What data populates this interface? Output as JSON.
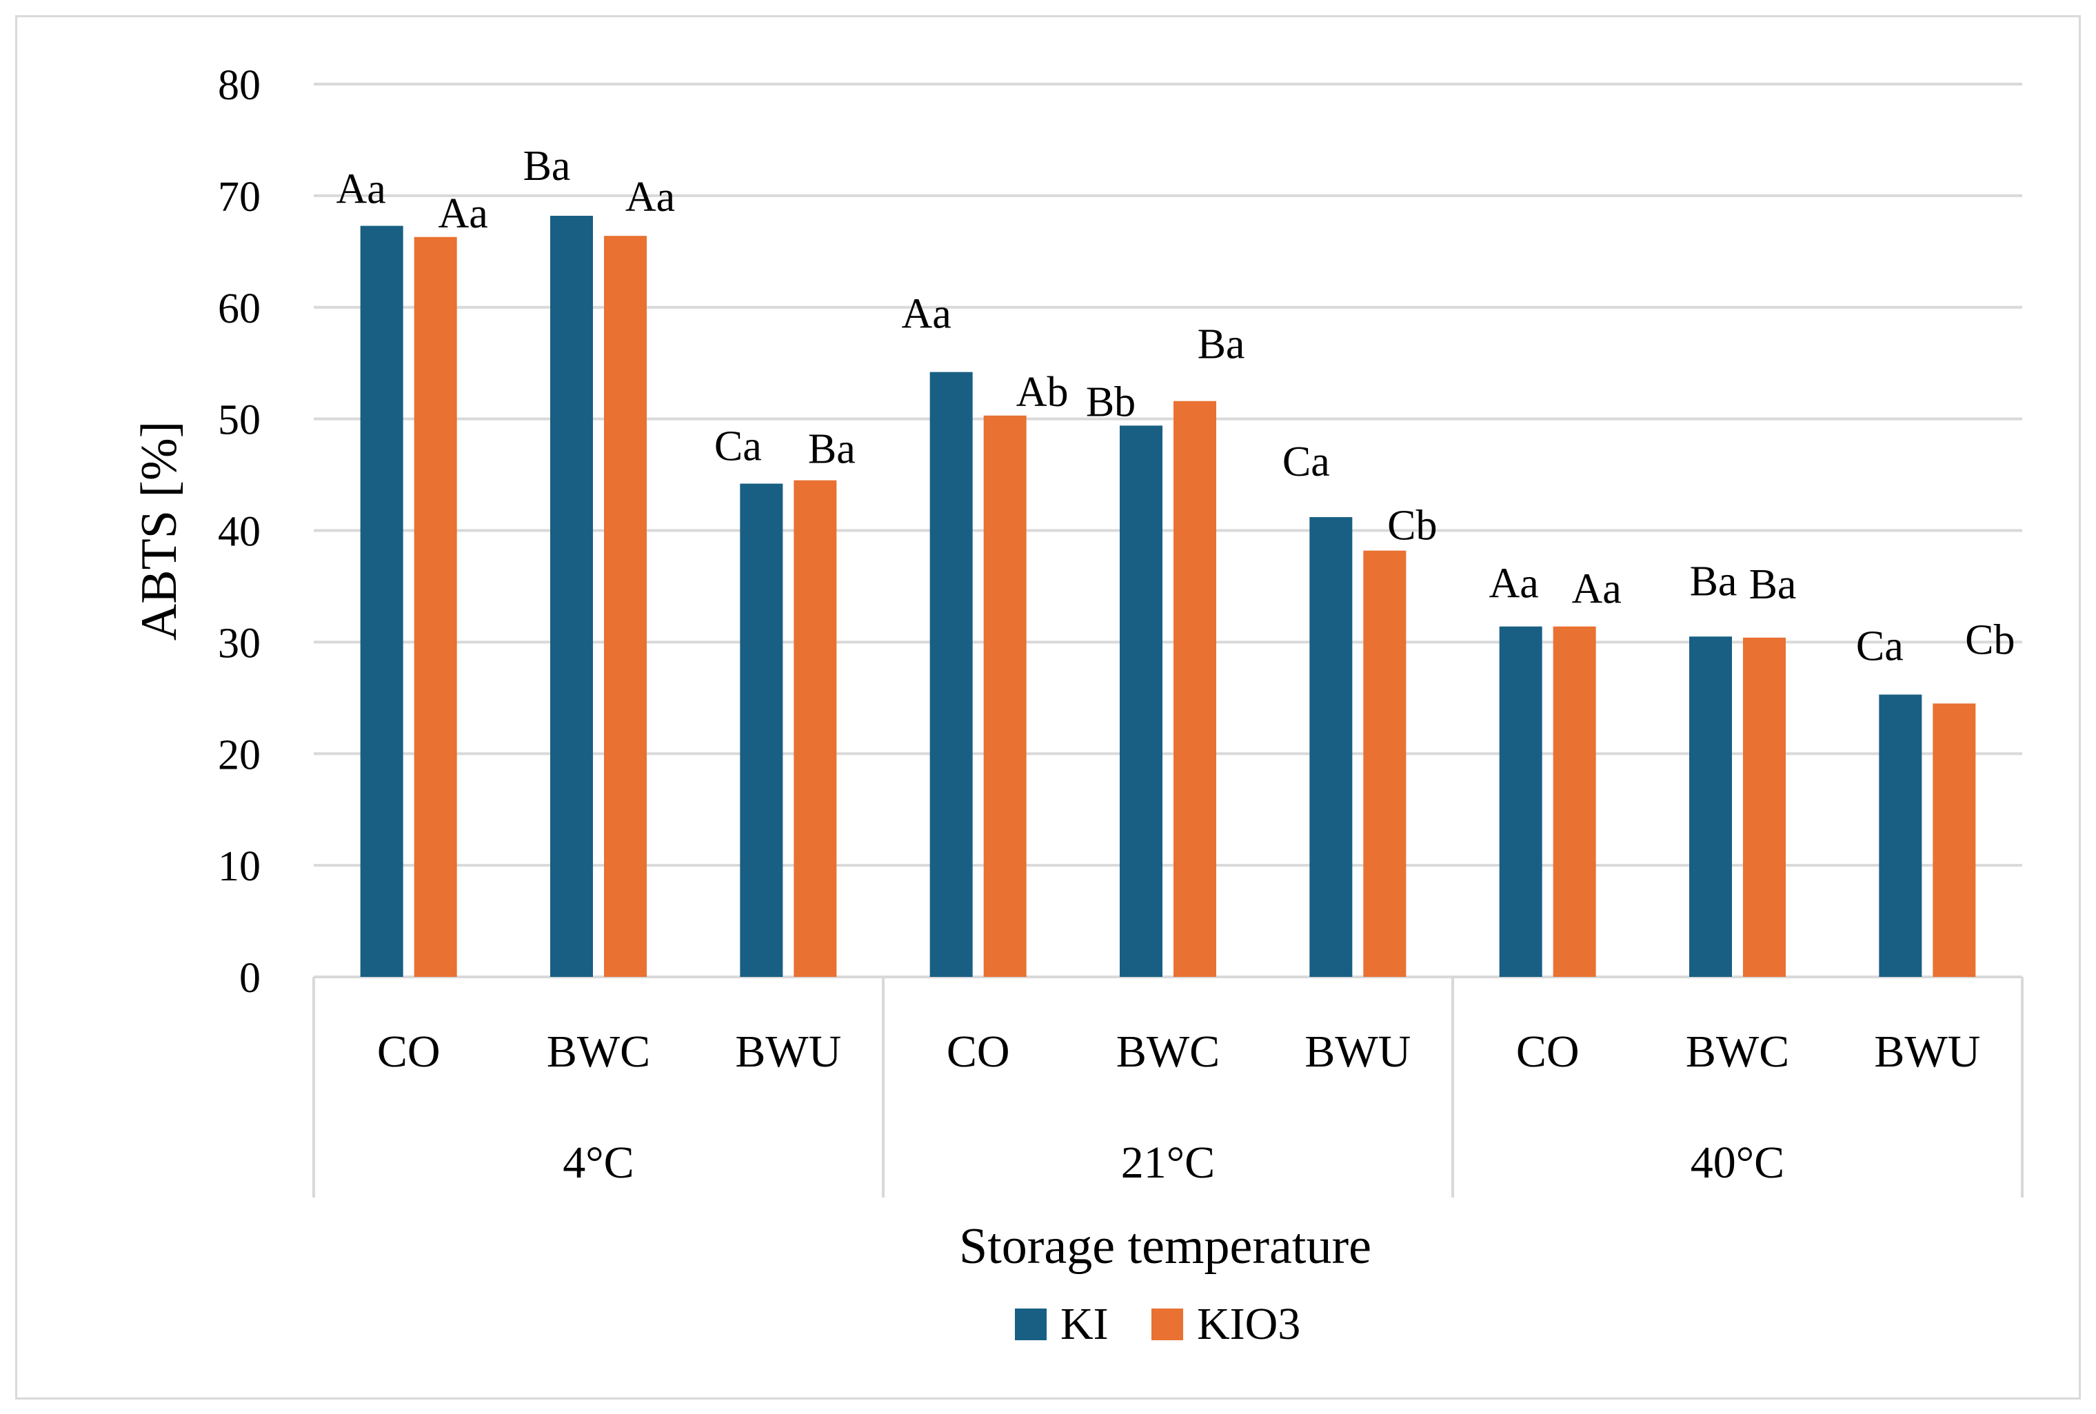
{
  "chart_data": {
    "type": "bar",
    "title": "",
    "ylabel": "ABTS [%]",
    "xlabel": "Storage temperature",
    "ylim": [
      0,
      80
    ],
    "yticks": [
      0,
      10,
      20,
      30,
      40,
      50,
      60,
      70,
      80
    ],
    "grid": true,
    "legend_position": "bottom",
    "groups": [
      {
        "label": "4°C",
        "categories": [
          "CO",
          "BWC",
          "BWU"
        ]
      },
      {
        "label": "21°C",
        "categories": [
          "CO",
          "BWC",
          "BWU"
        ]
      },
      {
        "label": "40°C",
        "categories": [
          "CO",
          "BWC",
          "BWU"
        ]
      }
    ],
    "series": [
      {
        "name": "KI",
        "color": "#185f83",
        "values": [
          67.3,
          68.2,
          44.2,
          54.2,
          49.4,
          41.2,
          31.4,
          30.5,
          25.3
        ],
        "labels": [
          "Aa",
          "Ba",
          "Ca",
          "Aa",
          "Bb",
          "Ca",
          "Aa",
          "Ba",
          "Ca"
        ]
      },
      {
        "name": "KIO3",
        "color": "#e97132",
        "values": [
          66.3,
          66.4,
          44.5,
          50.3,
          51.6,
          38.2,
          31.4,
          30.4,
          24.5
        ],
        "labels": [
          "Aa",
          "Aa",
          "Ba",
          "Ab",
          "Ba",
          "Cb",
          "Aa",
          "Ba",
          "Cb"
        ]
      }
    ]
  }
}
